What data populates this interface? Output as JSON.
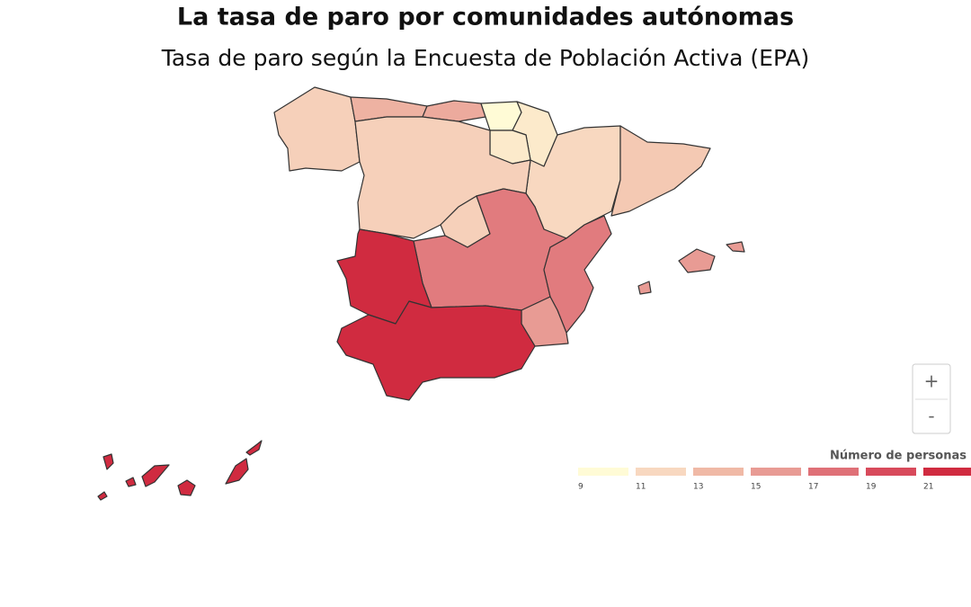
{
  "header": {
    "title": "La tasa de paro por comunidades autónomas",
    "subtitle": "Tasa de paro según la Encuesta de Población Activa (EPA)"
  },
  "map": {
    "regions": {
      "values": [
        11.5,
        13.5,
        14,
        9,
        10,
        10,
        11,
        12,
        11.5,
        11.5,
        16.5,
        16.5,
        15,
        21,
        21,
        15,
        21
      ]
    },
    "border_color": "#333333"
  },
  "legend": {
    "title": "Número de personas",
    "ticks": [
      9,
      11,
      13,
      15,
      17,
      19,
      21
    ],
    "colors": [
      "#fffbd6",
      "#f8d8c0",
      "#f0b9a6",
      "#e89b94",
      "#df7077",
      "#d84a5b",
      "#d02b40"
    ]
  },
  "zoom": {
    "in": "+",
    "out": "-"
  }
}
